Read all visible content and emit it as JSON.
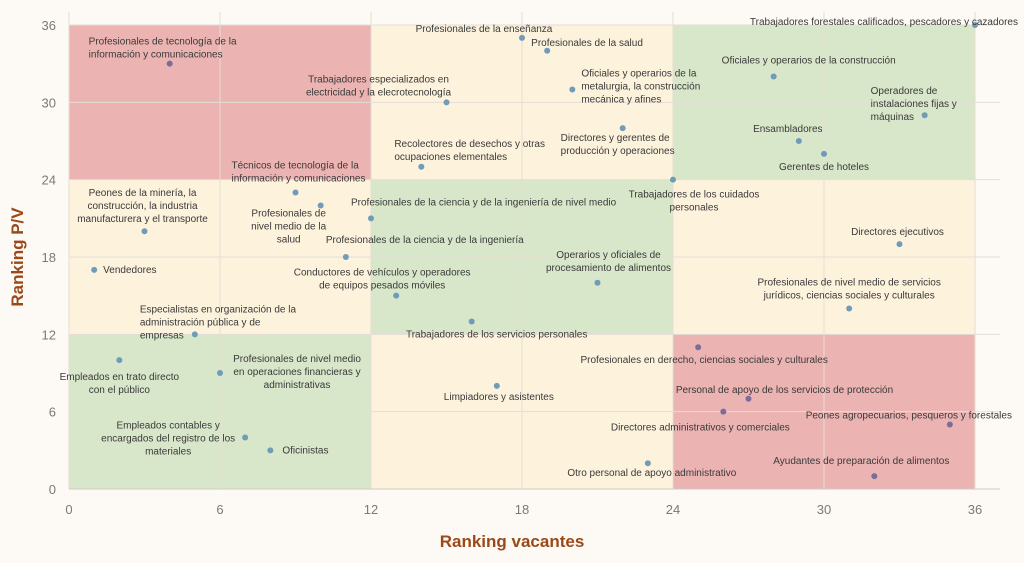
{
  "chart_data": {
    "type": "scatter",
    "title": "",
    "xlabel": "Ranking vacantes",
    "ylabel": "Ranking P/V",
    "xlim": [
      0,
      36
    ],
    "ylim": [
      0,
      36
    ],
    "xticks": [
      "0",
      "6",
      "12",
      "18",
      "24",
      "30",
      "36"
    ],
    "yticks": [
      "0",
      "6",
      "12",
      "18",
      "24",
      "30",
      "36"
    ],
    "grid": true,
    "colors": {
      "red": "#ebb3b1",
      "yellow": "#fdf2dc",
      "green": "#d8e6c9",
      "point": "#6f9cb8",
      "point_red": "#7b6c9c"
    },
    "zones": [
      {
        "x": [
          0,
          12
        ],
        "y": [
          24,
          36
        ],
        "color": "red"
      },
      {
        "x": [
          12,
          24
        ],
        "y": [
          24,
          36
        ],
        "color": "yellow"
      },
      {
        "x": [
          24,
          36
        ],
        "y": [
          24,
          36
        ],
        "color": "green"
      },
      {
        "x": [
          0,
          12
        ],
        "y": [
          12,
          24
        ],
        "color": "yellow"
      },
      {
        "x": [
          12,
          24
        ],
        "y": [
          12,
          24
        ],
        "color": "green"
      },
      {
        "x": [
          24,
          36
        ],
        "y": [
          12,
          24
        ],
        "color": "yellow"
      },
      {
        "x": [
          0,
          12
        ],
        "y": [
          0,
          12
        ],
        "color": "green"
      },
      {
        "x": [
          12,
          24
        ],
        "y": [
          0,
          12
        ],
        "color": "yellow"
      },
      {
        "x": [
          24,
          36
        ],
        "y": [
          0,
          12
        ],
        "color": "red"
      }
    ],
    "points": [
      {
        "x": 4,
        "y": 33,
        "label": [
          "Profesionales de tecnología de la",
          "información y comunicaciones"
        ]
      },
      {
        "x": 18,
        "y": 35,
        "label": [
          "Profesionales de la enseñanza"
        ]
      },
      {
        "x": 19,
        "y": 34,
        "label": [
          "Profesionales de la salud"
        ]
      },
      {
        "x": 36,
        "y": 36,
        "label": [
          "Trabajadores forestales calificados, pescadores y cazadores"
        ]
      },
      {
        "x": 15,
        "y": 30,
        "label": [
          "Trabajadores especializados en",
          "electricidad y la elecrotecnología"
        ]
      },
      {
        "x": 20,
        "y": 31,
        "label": [
          "Oficiales y operarios de la",
          "metalurgia, la construcción",
          "mecánica y afines"
        ]
      },
      {
        "x": 28,
        "y": 32,
        "label": [
          "Oficiales y operarios de la construcción"
        ]
      },
      {
        "x": 34,
        "y": 29,
        "label": [
          "Operadores de",
          "instalaciones fijas y",
          "máquinas"
        ]
      },
      {
        "x": 29,
        "y": 27,
        "label": [
          "Ensambladores"
        ]
      },
      {
        "x": 22,
        "y": 28,
        "label": [
          "Directores y gerentes de",
          "producción y operaciones"
        ]
      },
      {
        "x": 30,
        "y": 26,
        "label": [
          "Gerentes de hoteles"
        ]
      },
      {
        "x": 14,
        "y": 25,
        "label": [
          "Recolectores de desechos y otras",
          "ocupaciones elementales"
        ]
      },
      {
        "x": 9,
        "y": 23,
        "label": [
          "Técnicos de tecnología de la",
          "información y comunicaciones"
        ]
      },
      {
        "x": 24,
        "y": 24,
        "label": [
          "Trabajadores de los cuidados",
          "personales"
        ]
      },
      {
        "x": 10,
        "y": 22,
        "label": [
          "Profesionales de",
          "nivel medio de la",
          "salud"
        ]
      },
      {
        "x": 3,
        "y": 20,
        "label": [
          "Peones de la minería, la",
          "construcción, la industria",
          "manufacturera y el transporte"
        ]
      },
      {
        "x": 12,
        "y": 21,
        "label": [
          "Profesionales de la ciencia y de la ingeniería de nivel medio"
        ]
      },
      {
        "x": 11,
        "y": 18,
        "label": [
          "Profesionales de la ciencia y de la ingeniería"
        ]
      },
      {
        "x": 33,
        "y": 19,
        "label": [
          "Directores ejecutivos"
        ]
      },
      {
        "x": 1,
        "y": 17,
        "label": [
          "Vendedores"
        ]
      },
      {
        "x": 21,
        "y": 16,
        "label": [
          "Operarios y oficiales de",
          "procesamiento de alimentos"
        ]
      },
      {
        "x": 13,
        "y": 15,
        "label": [
          "Conductores de vehículos y operadores",
          "de equipos pesados móviles"
        ]
      },
      {
        "x": 31,
        "y": 14,
        "label": [
          "Profesionales de nivel medio de servicios",
          "jurídicos, ciencias sociales y culturales"
        ]
      },
      {
        "x": 16,
        "y": 13,
        "label": [
          "Trabajadores de los servicios personales"
        ]
      },
      {
        "x": 5,
        "y": 12,
        "label": [
          "Especialistas en organización de la",
          "administración pública y de",
          "empresas"
        ]
      },
      {
        "x": 25,
        "y": 11,
        "label": [
          "Profesionales en derecho, ciencias sociales y culturales"
        ]
      },
      {
        "x": 2,
        "y": 10,
        "label": [
          "Empleados en trato directo",
          "con el público"
        ]
      },
      {
        "x": 6,
        "y": 9,
        "label": [
          "Profesionales de nivel medio",
          "en operaciones financieras y",
          "administrativas"
        ]
      },
      {
        "x": 17,
        "y": 8,
        "label": [
          "Limpiadores y asistentes"
        ]
      },
      {
        "x": 27,
        "y": 7,
        "label": [
          "Personal de apoyo de los servicios de protección"
        ]
      },
      {
        "x": 26,
        "y": 6,
        "label": [
          "Directores administrativos y comerciales"
        ]
      },
      {
        "x": 35,
        "y": 5,
        "label": [
          "Peones agropecuarios, pesqueros y forestales"
        ]
      },
      {
        "x": 7,
        "y": 4,
        "label": [
          "Empleados contables y",
          "encargados del registro de los",
          "materiales"
        ]
      },
      {
        "x": 8,
        "y": 3,
        "label": [
          "Oficinistas"
        ]
      },
      {
        "x": 23,
        "y": 2,
        "label": [
          "Otro personal de apoyo administrativo"
        ]
      },
      {
        "x": 32,
        "y": 1,
        "label": [
          "Ayudantes de preparación de alimentos"
        ]
      }
    ]
  }
}
